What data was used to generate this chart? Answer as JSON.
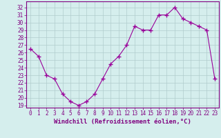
{
  "x": [
    0,
    1,
    2,
    3,
    4,
    5,
    6,
    7,
    8,
    9,
    10,
    11,
    12,
    13,
    14,
    15,
    16,
    17,
    18,
    19,
    20,
    21,
    22,
    23
  ],
  "y": [
    26.5,
    25.5,
    23.0,
    22.5,
    20.5,
    19.5,
    19.0,
    19.5,
    20.5,
    22.5,
    24.5,
    25.5,
    27.0,
    29.5,
    29.0,
    29.0,
    31.0,
    31.0,
    32.0,
    30.5,
    30.0,
    29.5,
    29.0,
    22.5
  ],
  "line_color": "#990099",
  "marker": "+",
  "marker_size": 4,
  "marker_lw": 1.0,
  "bg_color": "#d5eeed",
  "grid_color": "#b0cccc",
  "xlabel": "Windchill (Refroidissement éolien,°C)",
  "ylabel_ticks": [
    19,
    20,
    21,
    22,
    23,
    24,
    25,
    26,
    27,
    28,
    29,
    30,
    31,
    32
  ],
  "ylim": [
    18.7,
    32.8
  ],
  "xlim": [
    -0.5,
    23.5
  ],
  "xtick_labels": [
    "0",
    "1",
    "2",
    "3",
    "4",
    "5",
    "6",
    "7",
    "8",
    "9",
    "10",
    "11",
    "12",
    "13",
    "14",
    "15",
    "16",
    "17",
    "18",
    "19",
    "20",
    "21",
    "22",
    "23"
  ],
  "tick_fontsize": 5.5,
  "xlabel_fontsize": 6.5,
  "axes_color": "#800080"
}
